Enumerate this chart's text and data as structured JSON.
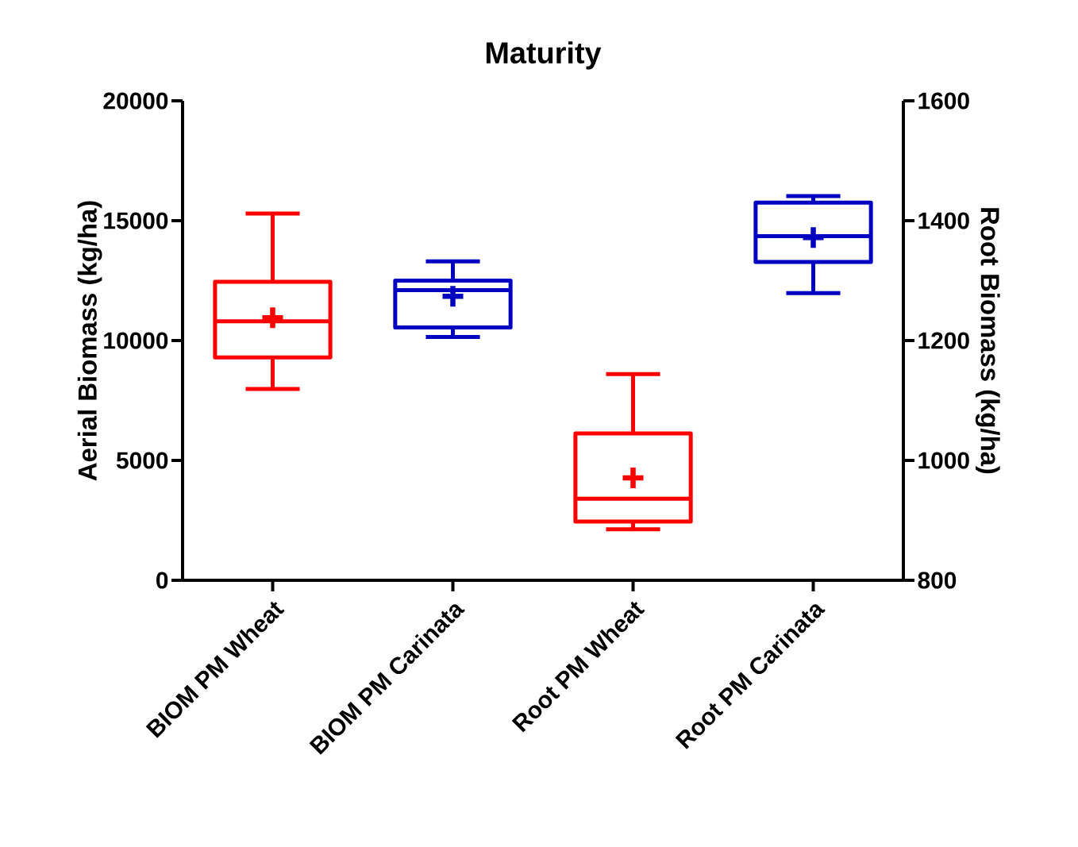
{
  "chart_data": {
    "type": "box",
    "title": "Maturity",
    "ylabel": "Aerial Biomass (kg/ha)",
    "y2label": "Root Biomass (kg/ha)",
    "categories": [
      "BIOM PM Wheat",
      "BIOM PM Carinata",
      "Root PM Wheat",
      "Root PM Carinata"
    ],
    "ylim": [
      0,
      20000
    ],
    "yticks": [
      0,
      5000,
      10000,
      15000,
      20000
    ],
    "y2lim": [
      800,
      1600
    ],
    "y2ticks": [
      800,
      1000,
      1200,
      1400,
      1600
    ],
    "series": [
      {
        "axis": "y",
        "colors": [
          "#ff0000",
          "#0000c0",
          null,
          null
        ],
        "boxes": [
          {
            "low": 7980,
            "q1": 9300,
            "median": 10800,
            "q3": 12450,
            "high": 15300,
            "mean": 10950
          },
          {
            "low": 10150,
            "q1": 10550,
            "median": 12100,
            "q3": 12500,
            "high": 13300,
            "mean": 11850
          },
          null,
          null
        ]
      },
      {
        "axis": "y2",
        "colors": [
          null,
          null,
          "#ff0000",
          "#0000c0"
        ],
        "boxes": [
          null,
          null,
          {
            "low": 885,
            "q1": 898,
            "median": 936,
            "q3": 1045,
            "high": 1144,
            "mean": 971
          },
          {
            "low": 1279,
            "q1": 1331,
            "median": 1374,
            "q3": 1430,
            "high": 1441,
            "mean": 1372
          }
        ]
      }
    ]
  }
}
